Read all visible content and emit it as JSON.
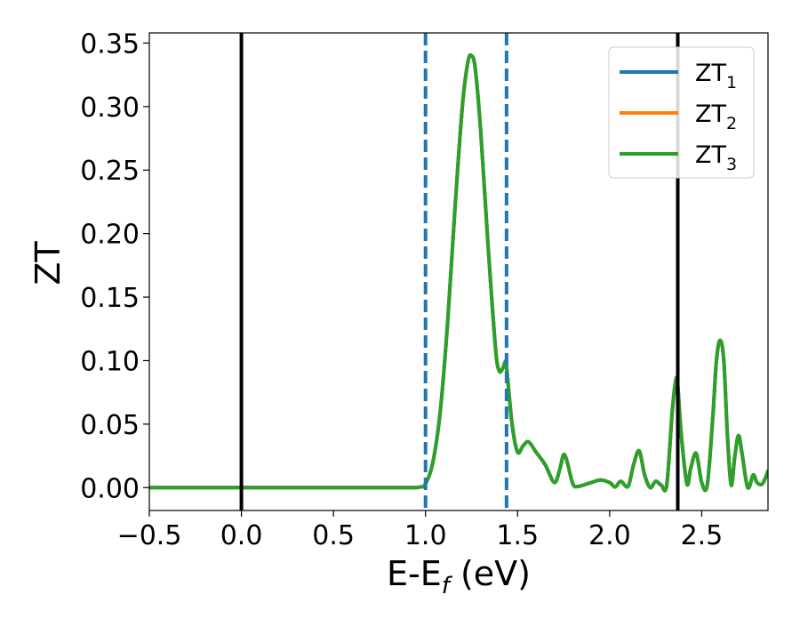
{
  "chart_data": {
    "type": "line",
    "title": "",
    "xlabel": "E-E",
    "xlabel_subscript": "f",
    "xlabel_unit": " (eV)",
    "ylabel": "ZT",
    "xlim": [
      -0.5,
      2.86
    ],
    "ylim": [
      -0.018,
      0.358
    ],
    "grid": false,
    "legend_position": "top-right",
    "x_ticks": [
      {
        "value": -0.5,
        "label": "−0.5"
      },
      {
        "value": 0.0,
        "label": "0.0"
      },
      {
        "value": 0.5,
        "label": "0.5"
      },
      {
        "value": 1.0,
        "label": "1.0"
      },
      {
        "value": 1.5,
        "label": "1.5"
      },
      {
        "value": 2.0,
        "label": "2.0"
      },
      {
        "value": 2.5,
        "label": "2.5"
      }
    ],
    "y_ticks": [
      {
        "value": 0.0,
        "label": "0.00"
      },
      {
        "value": 0.05,
        "label": "0.05"
      },
      {
        "value": 0.1,
        "label": "0.10"
      },
      {
        "value": 0.15,
        "label": "0.15"
      },
      {
        "value": 0.2,
        "label": "0.20"
      },
      {
        "value": 0.25,
        "label": "0.25"
      },
      {
        "value": 0.3,
        "label": "0.30"
      },
      {
        "value": 0.35,
        "label": "0.35"
      }
    ],
    "reference_lines": [
      {
        "x": 0.0,
        "style": "solid",
        "color": "#000000"
      },
      {
        "x": 1.0,
        "style": "dashed",
        "color": "#1f77b4"
      },
      {
        "x": 1.44,
        "style": "dashed",
        "color": "#1f77b4"
      },
      {
        "x": 2.37,
        "style": "solid",
        "color": "#000000"
      }
    ],
    "series": [
      {
        "name": "ZT",
        "subscript": "1",
        "color": "#1f77b4"
      },
      {
        "name": "ZT",
        "subscript": "2",
        "color": "#ff7f0e"
      },
      {
        "name": "ZT",
        "subscript": "3",
        "color": "#2ca02c"
      }
    ],
    "x": [
      -0.5,
      0.0,
      0.5,
      0.9,
      0.97,
      1.0,
      1.04,
      1.08,
      1.12,
      1.16,
      1.2,
      1.23,
      1.25,
      1.27,
      1.3,
      1.34,
      1.38,
      1.4,
      1.42,
      1.43,
      1.44,
      1.47,
      1.5,
      1.53,
      1.56,
      1.6,
      1.65,
      1.7,
      1.73,
      1.75,
      1.77,
      1.8,
      1.83,
      1.9,
      1.95,
      2.0,
      2.03,
      2.06,
      2.1,
      2.13,
      2.16,
      2.19,
      2.22,
      2.25,
      2.28,
      2.31,
      2.34,
      2.36,
      2.37,
      2.39,
      2.42,
      2.44,
      2.47,
      2.5,
      2.53,
      2.56,
      2.58,
      2.6,
      2.62,
      2.64,
      2.66,
      2.68,
      2.7,
      2.72,
      2.75,
      2.78,
      2.8,
      2.83,
      2.86
    ],
    "y": [
      0.0,
      0.0,
      0.0,
      0.0,
      0.0005,
      0.003,
      0.02,
      0.06,
      0.13,
      0.22,
      0.3,
      0.335,
      0.34,
      0.33,
      0.28,
      0.19,
      0.11,
      0.092,
      0.094,
      0.098,
      0.095,
      0.05,
      0.028,
      0.033,
      0.036,
      0.028,
      0.018,
      0.004,
      0.015,
      0.026,
      0.02,
      0.003,
      0.001,
      0.004,
      0.006,
      0.004,
      0.0005,
      0.005,
      0.001,
      0.018,
      0.029,
      0.01,
      0.0,
      0.005,
      0.002,
      0.002,
      0.06,
      0.085,
      0.08,
      0.04,
      0.003,
      0.015,
      0.027,
      0.004,
      0.002,
      0.055,
      0.1,
      0.116,
      0.1,
      0.04,
      0.002,
      0.025,
      0.041,
      0.026,
      0.0,
      0.01,
      0.004,
      0.003,
      0.013
    ]
  }
}
